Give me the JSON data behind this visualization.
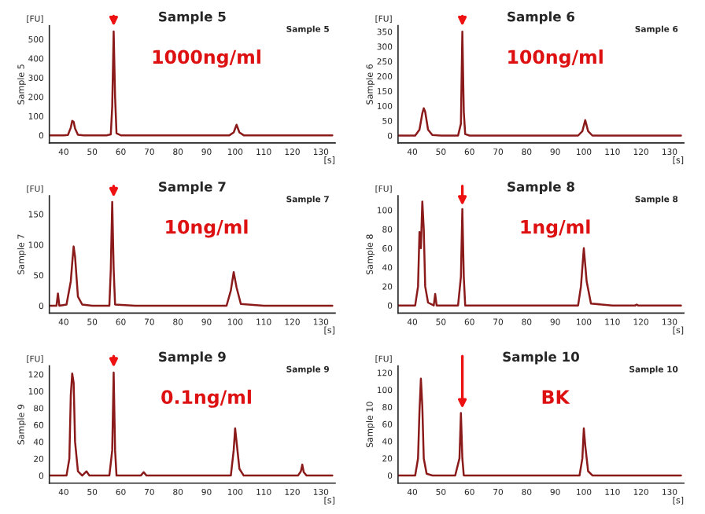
{
  "chart_data": [
    {
      "type": "line",
      "title": "Sample 5",
      "xlabel": "[s]",
      "ylabel": "Sample 5",
      "annotations": [
        "[FU]",
        "Sample 5",
        "1000ng/ml"
      ],
      "x": [
        35,
        40,
        41.5,
        42.5,
        43,
        43.5,
        44,
        45,
        47,
        55,
        56.5,
        57,
        57.5,
        58,
        58.5,
        60,
        70,
        80,
        90,
        98,
        99.5,
        100.5,
        101.5,
        103,
        115,
        125,
        134
      ],
      "series": [
        {
          "color": "#8b1a1a",
          "values": [
            0,
            0,
            2,
            40,
            75,
            70,
            35,
            3,
            0,
            0,
            5,
            150,
            540,
            200,
            10,
            0,
            0,
            0,
            0,
            0,
            15,
            55,
            15,
            0,
            0,
            0,
            0
          ]
        }
      ],
      "xlim": [
        35,
        135
      ],
      "xticks": [
        40,
        50,
        60,
        70,
        80,
        90,
        100,
        110,
        120,
        130
      ],
      "ylim": [
        -40,
        570
      ],
      "yticks": [
        0,
        100,
        200,
        300,
        400,
        500
      ],
      "grid": false
    },
    {
      "type": "line",
      "title": "Sample 6",
      "xlabel": "[s]",
      "ylabel": "Sample 6",
      "annotations": [
        "[FU]",
        "Sample 6",
        "100ng/ml"
      ],
      "x": [
        35,
        41,
        42.5,
        43.5,
        44,
        44.5,
        45.5,
        47,
        50,
        56,
        57,
        57.5,
        58,
        58.5,
        60,
        75,
        90,
        98,
        99.5,
        100.5,
        101.5,
        103,
        120,
        134
      ],
      "series": [
        {
          "color": "#8b1a1a",
          "values": [
            0,
            0,
            20,
            75,
            92,
            80,
            20,
            2,
            0,
            0,
            40,
            350,
            80,
            5,
            0,
            0,
            0,
            0,
            15,
            52,
            15,
            0,
            0,
            0
          ]
        }
      ],
      "xlim": [
        35,
        135
      ],
      "xticks": [
        40,
        50,
        60,
        70,
        80,
        90,
        100,
        110,
        120,
        130
      ],
      "ylim": [
        -25,
        370
      ],
      "yticks": [
        0,
        50,
        100,
        150,
        200,
        250,
        300,
        350
      ],
      "grid": false
    },
    {
      "type": "line",
      "title": "Sample 7",
      "xlabel": "[s]",
      "ylabel": "Sample 7",
      "annotations": [
        "[FU]",
        "Sample 7",
        "10ng/ml"
      ],
      "x": [
        35,
        37.5,
        38,
        38.5,
        41,
        42.5,
        43,
        43.5,
        44,
        45,
        46.5,
        50,
        56,
        56.5,
        57,
        57.5,
        58,
        65,
        80,
        97,
        98.5,
        99.5,
        100.5,
        102,
        110,
        134
      ],
      "series": [
        {
          "color": "#8b1a1a",
          "values": [
            0,
            0,
            20,
            0,
            2,
            40,
            70,
            97,
            80,
            15,
            2,
            0,
            0,
            60,
            170,
            60,
            2,
            0,
            0,
            0,
            25,
            55,
            30,
            3,
            0,
            0
          ]
        }
      ],
      "xlim": [
        35,
        135
      ],
      "xticks": [
        40,
        50,
        60,
        70,
        80,
        90,
        100,
        110,
        120,
        130
      ],
      "ylim": [
        -12,
        180
      ],
      "yticks": [
        0,
        50,
        100,
        150
      ],
      "grid": false
    },
    {
      "type": "line",
      "title": "Sample 8",
      "xlabel": "[s]",
      "ylabel": "Sample 8",
      "annotations": [
        "[FU]",
        "Sample 8",
        "1ng/ml"
      ],
      "x": [
        35,
        41,
        42,
        42.5,
        43,
        43.5,
        44,
        44.5,
        45.5,
        47.5,
        48,
        48.5,
        56,
        57,
        57.5,
        58,
        58.5,
        70,
        85,
        98,
        99,
        100,
        101,
        102.5,
        110,
        118,
        118.5,
        119,
        134
      ],
      "series": [
        {
          "color": "#8b1a1a",
          "values": [
            0,
            0,
            20,
            77,
            60,
            109,
            80,
            20,
            3,
            0,
            12,
            0,
            0,
            30,
            101,
            30,
            0,
            0,
            0,
            0,
            20,
            60,
            25,
            2,
            0,
            0,
            1,
            0,
            0
          ]
        }
      ],
      "xlim": [
        35,
        135
      ],
      "xticks": [
        40,
        50,
        60,
        70,
        80,
        90,
        100,
        110,
        120,
        130
      ],
      "ylim": [
        -8,
        115
      ],
      "yticks": [
        0,
        20,
        40,
        60,
        80,
        100
      ],
      "grid": false
    },
    {
      "type": "line",
      "title": "Sample 9",
      "xlabel": "[s]",
      "ylabel": "Sample 9",
      "annotations": [
        "[FU]",
        "Sample 9",
        "0.1ng/ml"
      ],
      "x": [
        35,
        41,
        42,
        42.5,
        43,
        43.5,
        44,
        45,
        46.5,
        48,
        49,
        56,
        57,
        57.5,
        58,
        58.5,
        67,
        68,
        69,
        85,
        98.5,
        99.5,
        100,
        100.5,
        101.5,
        103,
        122,
        123,
        123.5,
        124,
        125,
        134
      ],
      "series": [
        {
          "color": "#8b1a1a",
          "values": [
            0,
            0,
            20,
            95,
            121,
            110,
            40,
            5,
            0,
            5,
            0,
            0,
            30,
            122,
            30,
            0,
            0,
            4,
            0,
            0,
            0,
            30,
            56,
            40,
            8,
            0,
            0,
            5,
            13,
            4,
            0,
            0
          ]
        }
      ],
      "xlim": [
        35,
        135
      ],
      "xticks": [
        40,
        50,
        60,
        70,
        80,
        90,
        100,
        110,
        120,
        130
      ],
      "ylim": [
        -9,
        130
      ],
      "yticks": [
        0,
        20,
        40,
        60,
        80,
        100,
        120
      ],
      "grid": false
    },
    {
      "type": "line",
      "title": "Sample 10",
      "xlabel": "[s]",
      "ylabel": "Sample 10",
      "annotations": [
        "[FU]",
        "Sample 10",
        "BK"
      ],
      "x": [
        35,
        41,
        42,
        42.5,
        43,
        43.5,
        44,
        45,
        47,
        55,
        56.5,
        57,
        57.5,
        58,
        70,
        85,
        98.5,
        99.5,
        100,
        100.5,
        101.5,
        103,
        134
      ],
      "series": [
        {
          "color": "#8b1a1a",
          "values": [
            0,
            0,
            20,
            75,
            113,
            80,
            20,
            2,
            0,
            0,
            20,
            73,
            20,
            0,
            0,
            0,
            0,
            20,
            55,
            35,
            5,
            0,
            0
          ]
        }
      ],
      "xlim": [
        35,
        135
      ],
      "xticks": [
        40,
        50,
        60,
        70,
        80,
        90,
        100,
        110,
        120,
        130
      ],
      "ylim": [
        -9,
        128
      ],
      "yticks": [
        0,
        20,
        40,
        60,
        80,
        100,
        120
      ],
      "grid": false
    }
  ]
}
